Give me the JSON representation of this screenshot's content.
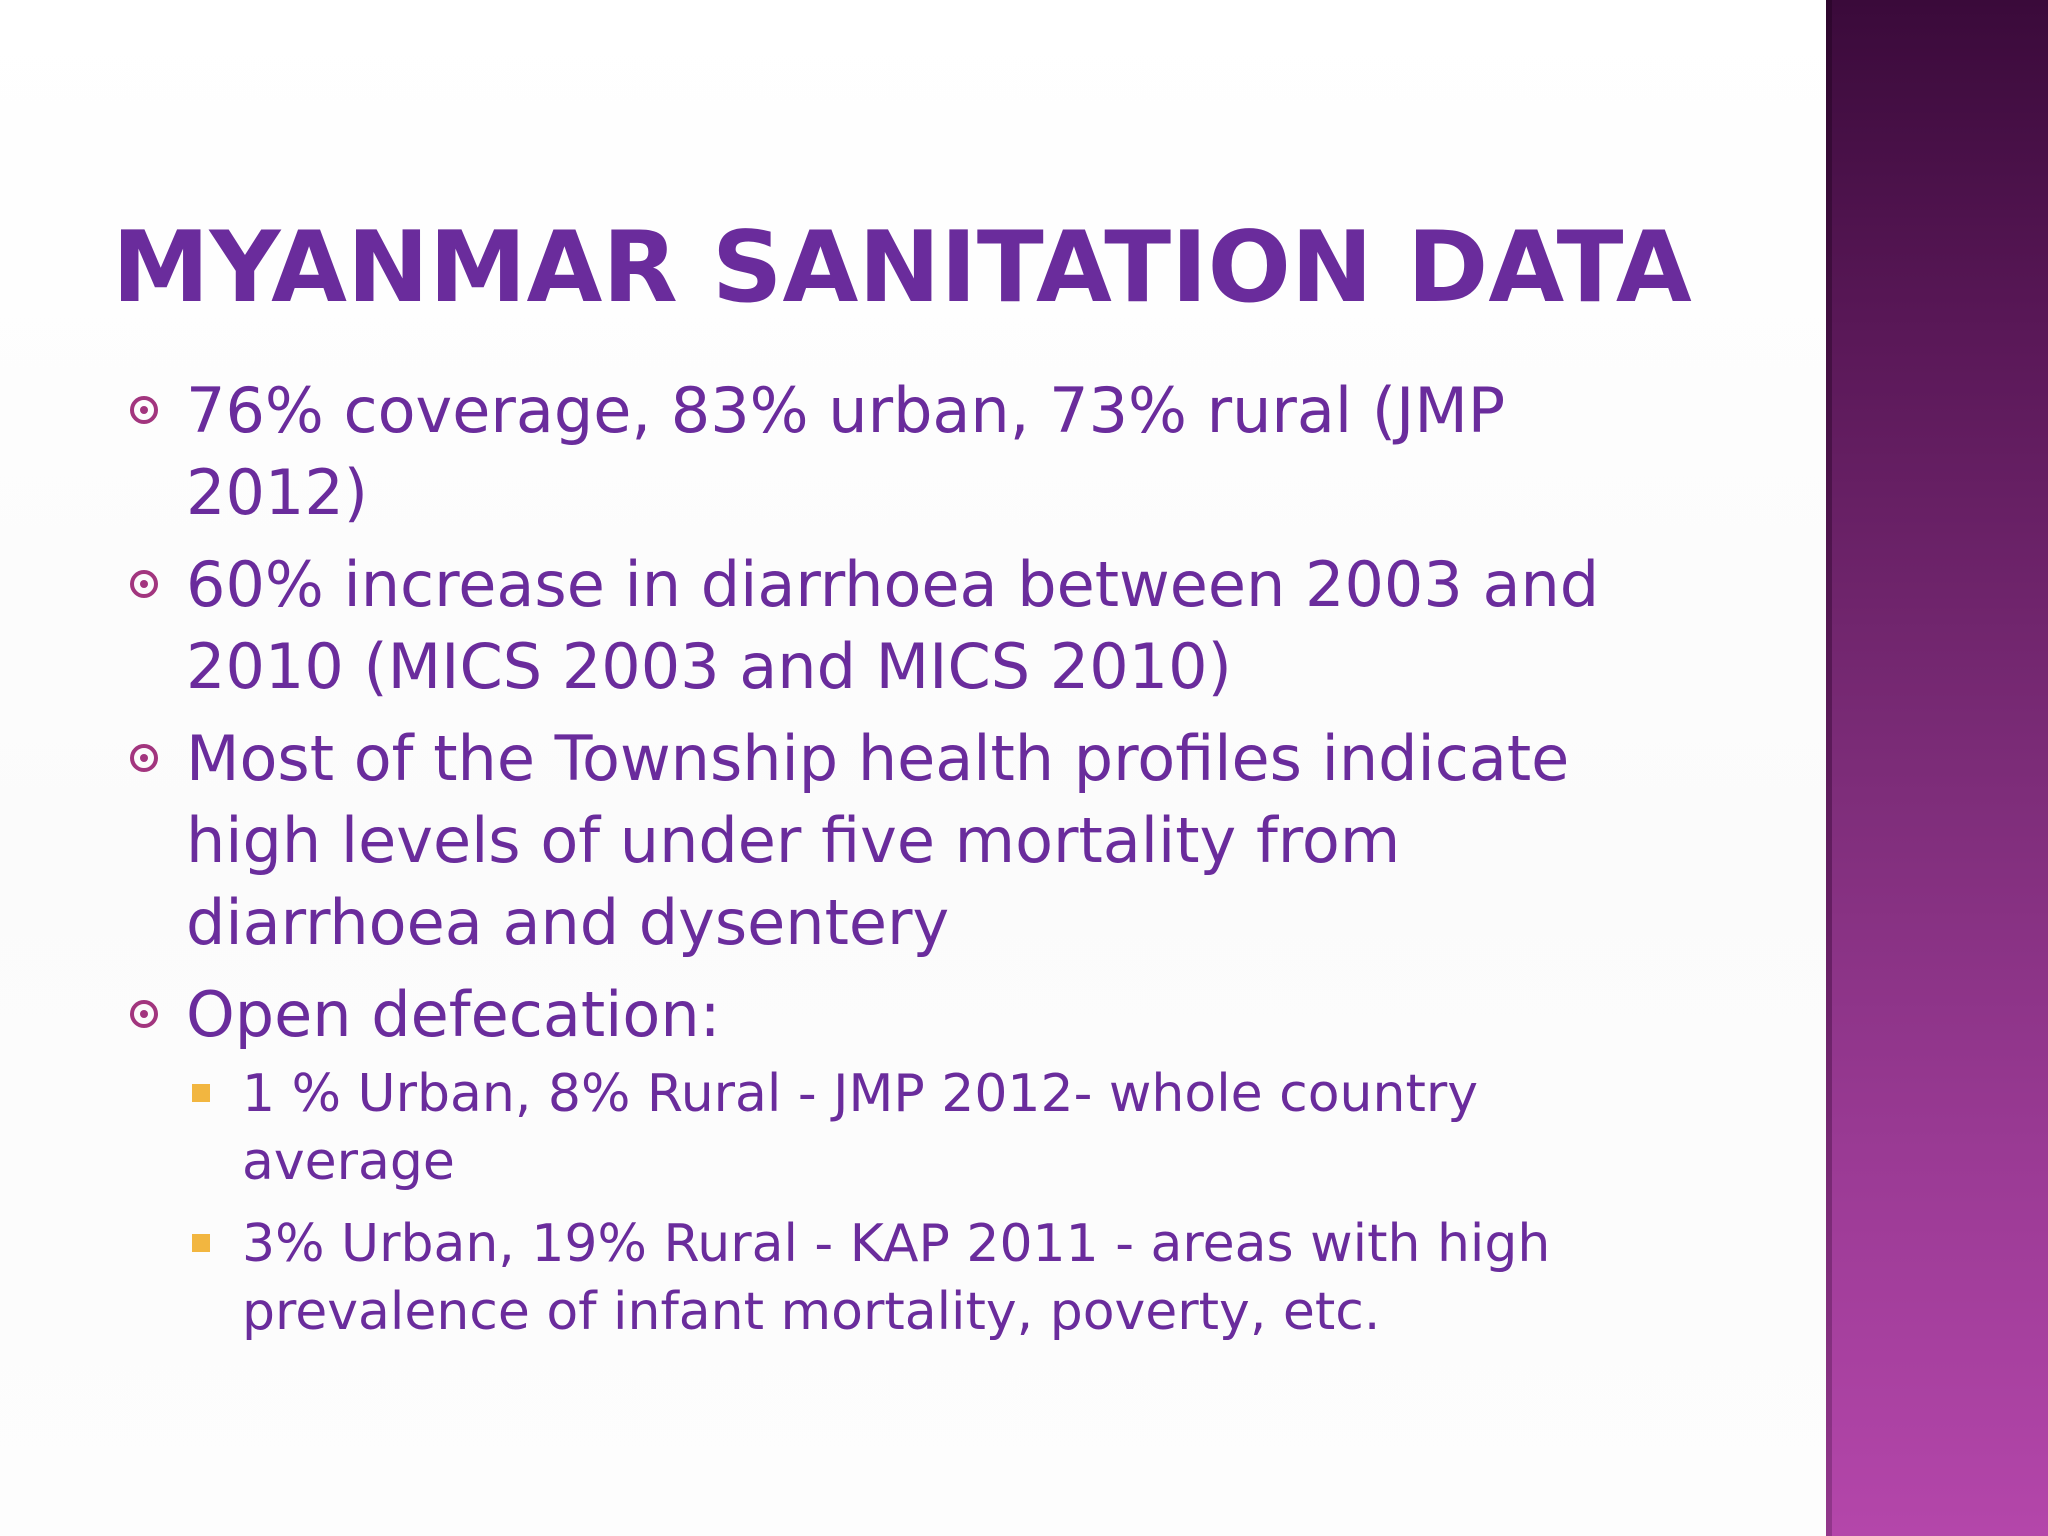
{
  "slide": {
    "title": "MYANMAR SANITATION DATA",
    "bullets": [
      {
        "text": "76% coverage, 83% urban, 73% rural (JMP 2012)"
      },
      {
        "text": "60% increase in diarrhoea between 2003 and 2010 (MICS 2003 and MICS 2010)"
      },
      {
        "text": "Most of the Township health profiles indicate high levels of under five mortality from diarrhoea and dysentery"
      },
      {
        "text": "Open defecation:"
      }
    ],
    "sub_bullets": [
      {
        "text": "1 % Urban, 8% Rural - JMP 2012- whole country average"
      },
      {
        "text": "3% Urban, 19% Rural - KAP 2011 - areas with high prevalence of infant mortality, poverty, etc."
      }
    ]
  },
  "colors": {
    "title": "#6a2c9c",
    "text": "#6a2c9c",
    "bullet_icon": "#a2357e",
    "sub_bullet_icon": "#f2b640",
    "side_bar_top": "#3a0a3a",
    "side_bar_bottom": "#b446aa"
  },
  "icons": {
    "bullet": "circle-dot-icon",
    "sub_bullet": "square-icon"
  }
}
